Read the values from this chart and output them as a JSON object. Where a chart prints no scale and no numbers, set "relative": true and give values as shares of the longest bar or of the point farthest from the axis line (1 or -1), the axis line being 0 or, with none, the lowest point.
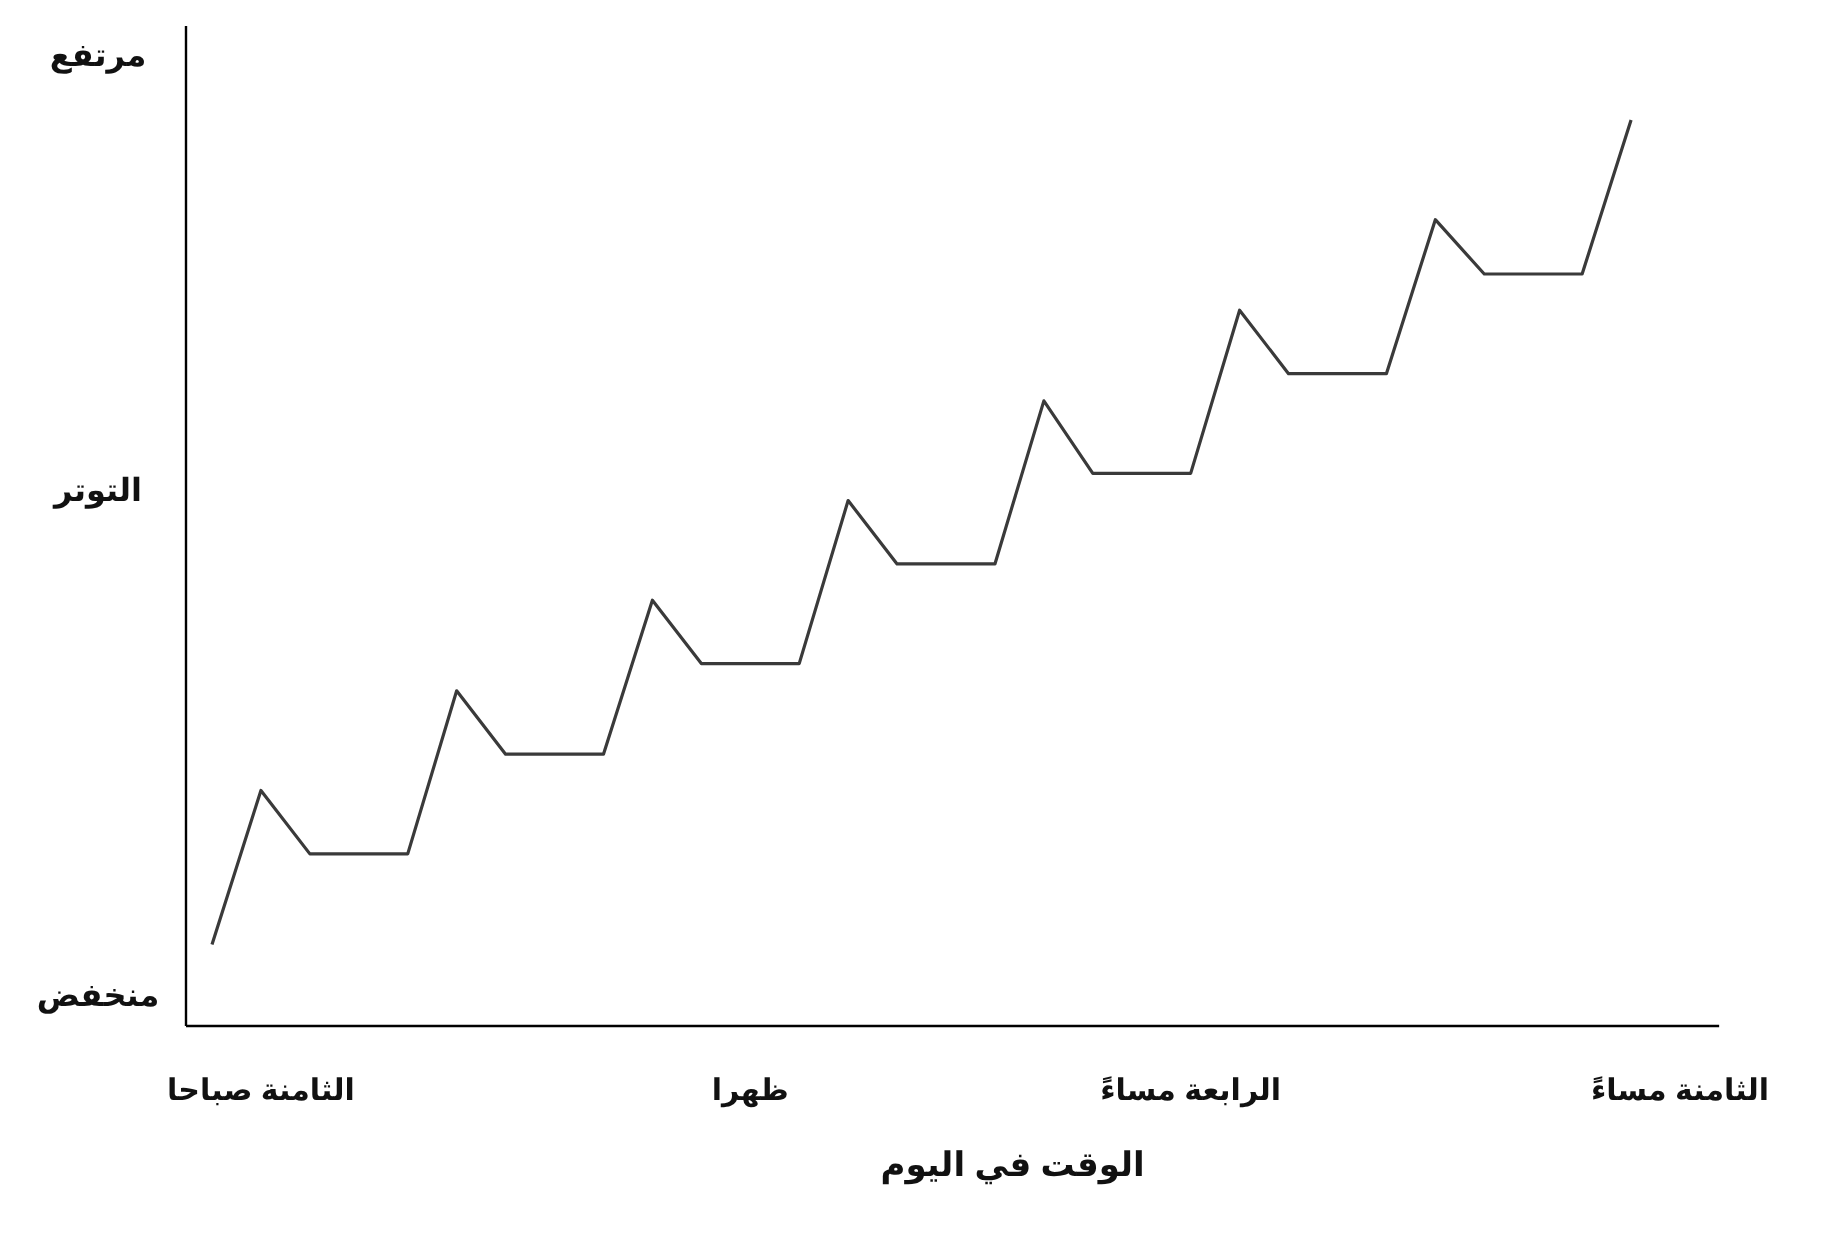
{
  "chart_data": {
    "type": "line",
    "xlabel": "الوقت في اليوم",
    "ylabel": "التوتر",
    "relative": true,
    "annotations": [
      "مرتفع",
      "منخفض"
    ],
    "categories": [
      null,
      "الثامنة صباحا",
      null,
      null,
      null,
      null,
      null,
      null,
      null,
      null,
      null,
      "ظهرا",
      null,
      null,
      null,
      null,
      null,
      null,
      null,
      null,
      "الرابعة مساءً",
      null,
      null,
      null,
      null,
      null,
      null,
      null,
      null,
      null,
      "الثامنة مساءً"
    ],
    "values": [
      0.09,
      0.26,
      0.19,
      0.19,
      0.19,
      0.37,
      0.3,
      0.3,
      0.3,
      0.47,
      0.4,
      0.4,
      0.4,
      0.58,
      0.51,
      0.51,
      0.51,
      0.69,
      0.61,
      0.61,
      0.61,
      0.79,
      0.72,
      0.72,
      0.72,
      0.89,
      0.83,
      0.83,
      0.83,
      1,
      null
    ],
    "color": "#3a3a3a",
    "line_style": "solid"
  }
}
